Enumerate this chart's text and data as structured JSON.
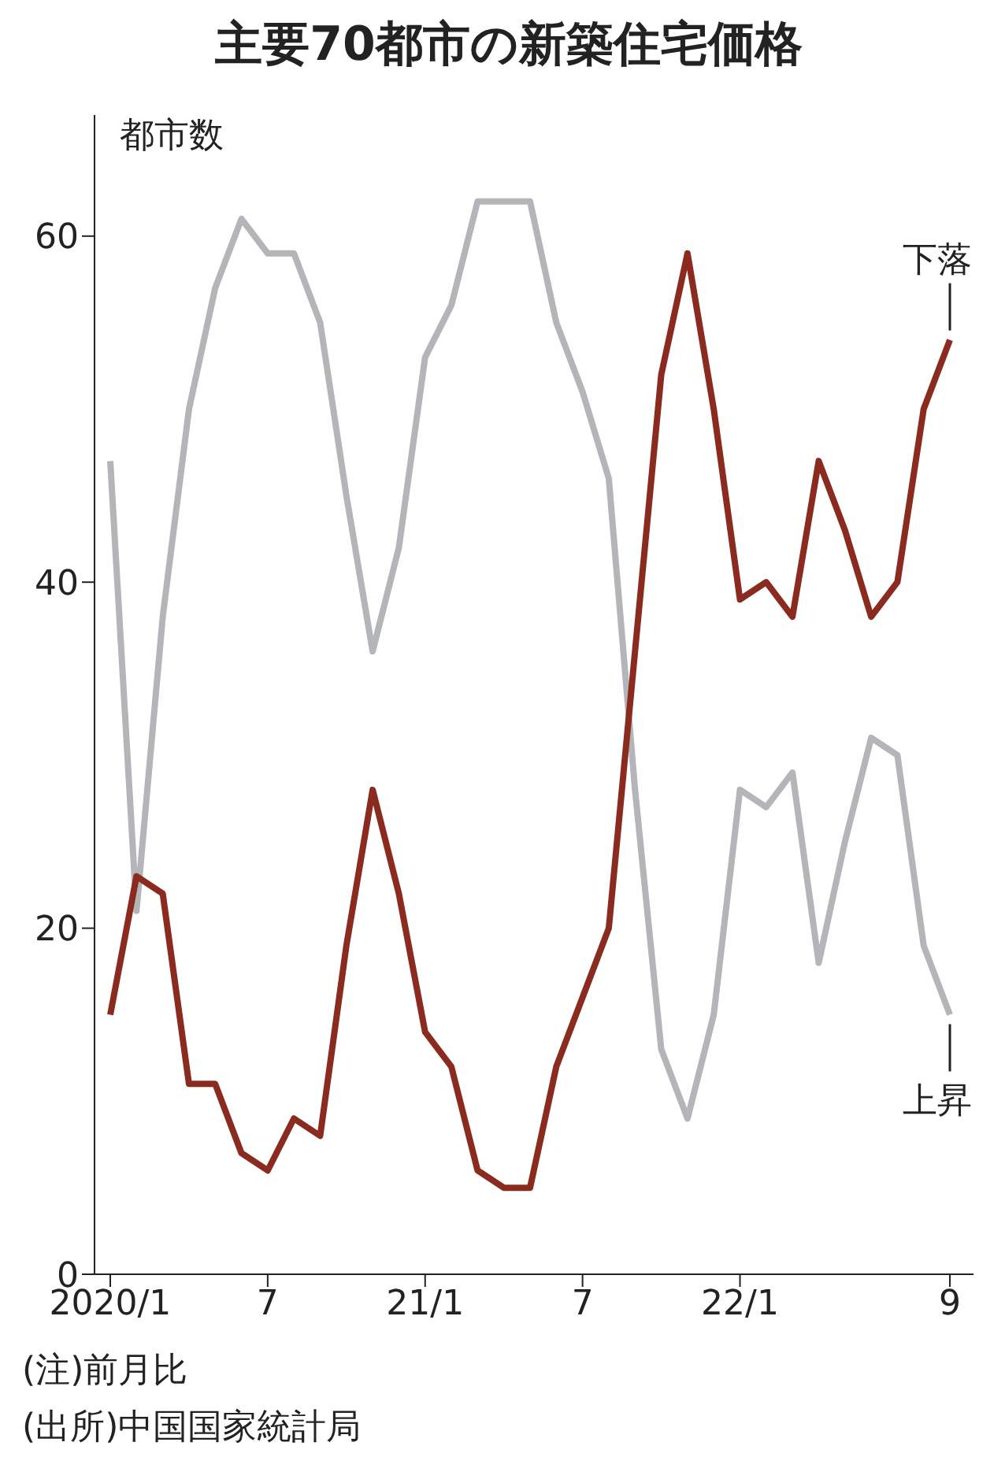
{
  "chart_data": {
    "type": "line",
    "title": "主要70都市の新築住宅価格",
    "ylabel": "都市数",
    "categories": [
      "2020/1",
      null,
      null,
      null,
      null,
      null,
      "7",
      null,
      null,
      null,
      null,
      null,
      "21/1",
      null,
      null,
      null,
      null,
      null,
      "7",
      null,
      null,
      null,
      null,
      null,
      "22/1",
      null,
      null,
      null,
      null,
      null,
      null,
      null,
      "9"
    ],
    "series": [
      {
        "name": "上昇",
        "color": "#b4b5b8",
        "values": [
          47,
          21,
          38,
          50,
          57,
          61,
          59,
          59,
          55,
          45,
          36,
          42,
          53,
          56,
          62,
          62,
          62,
          55,
          51,
          46,
          28,
          13,
          9,
          15,
          28,
          27,
          29,
          18,
          25,
          31,
          30,
          19,
          15
        ]
      },
      {
        "name": "下落",
        "color": "#8b2a1e",
        "values": [
          15,
          23,
          22,
          11,
          11,
          7,
          6,
          9,
          8,
          19,
          28,
          22,
          14,
          12,
          6,
          5,
          5,
          12,
          16,
          20,
          36,
          52,
          59,
          50,
          39,
          40,
          38,
          47,
          43,
          38,
          40,
          50,
          54
        ]
      }
    ],
    "ylim": [
      0,
      67
    ],
    "yticks": [
      0,
      20,
      40,
      60
    ],
    "grid": false,
    "legend": false,
    "marker": "none",
    "line_style": "solid",
    "annotations": [
      "(注)前月比",
      "(出所)中国国家統計局"
    ]
  }
}
